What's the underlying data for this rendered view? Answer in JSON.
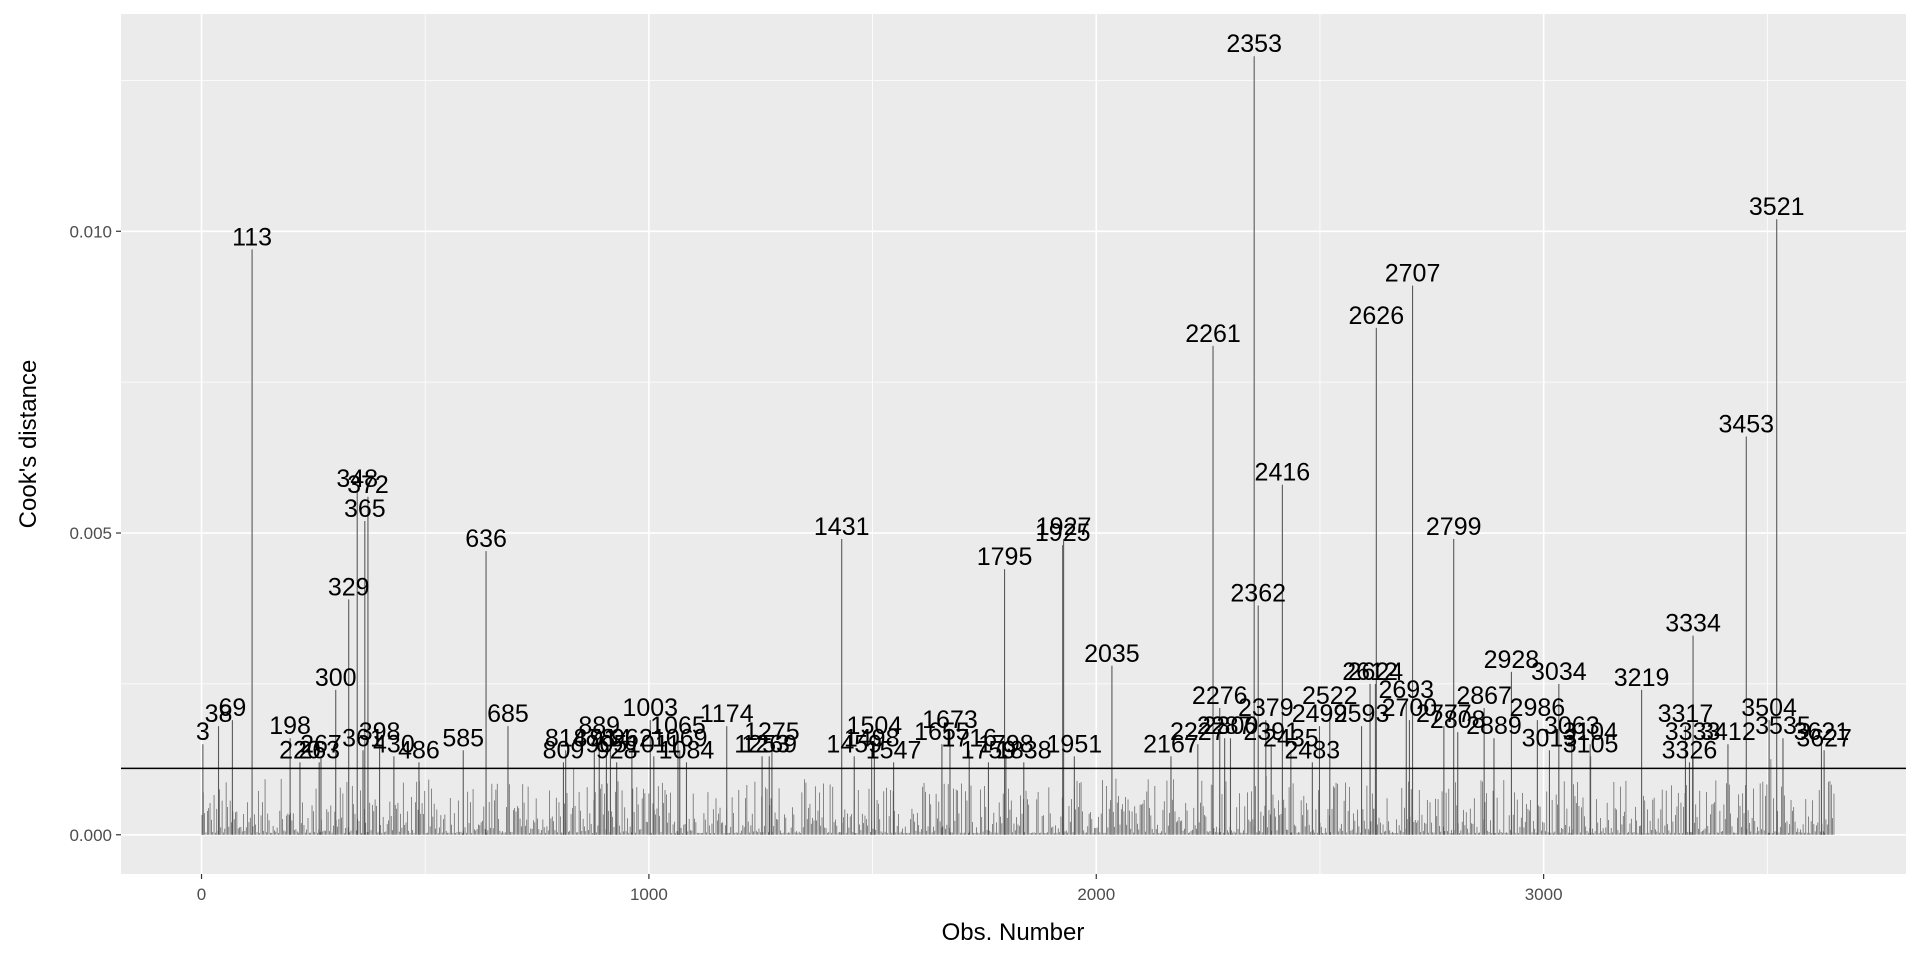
{
  "chart_data": {
    "type": "bar",
    "xlabel": "Obs. Number",
    "ylabel": "Cook's distance",
    "xlim": [
      -180,
      3810
    ],
    "ylim": [
      -0.00065,
      0.0136
    ],
    "x_ticks": [
      0,
      1000,
      2000,
      3000
    ],
    "y_ticks": [
      0.0,
      0.005,
      0.01
    ],
    "x_tick_labels": [
      "0",
      "1000",
      "2000",
      "3000"
    ],
    "y_tick_labels": [
      "0.000",
      "0.005",
      "0.010"
    ],
    "threshold": 0.0011,
    "n_obs": 3650,
    "grid": true,
    "colors": {
      "panel": "#ebebeb",
      "grid": "#ffffff",
      "bar": "#595959",
      "hline": "#000000"
    },
    "labeled_points": [
      {
        "x": 3,
        "y": 0.0015,
        "label": "3"
      },
      {
        "x": 38,
        "y": 0.0018,
        "label": "38"
      },
      {
        "x": 69,
        "y": 0.0019,
        "label": "69"
      },
      {
        "x": 113,
        "y": 0.0097,
        "label": "113"
      },
      {
        "x": 198,
        "y": 0.0016,
        "label": "198"
      },
      {
        "x": 220,
        "y": 0.0012,
        "label": "220"
      },
      {
        "x": 263,
        "y": 0.0012,
        "label": "263"
      },
      {
        "x": 267,
        "y": 0.0013,
        "label": "267"
      },
      {
        "x": 300,
        "y": 0.0024,
        "label": "300"
      },
      {
        "x": 329,
        "y": 0.0039,
        "label": "329"
      },
      {
        "x": 348,
        "y": 0.0057,
        "label": "348"
      },
      {
        "x": 361,
        "y": 0.0014,
        "label": "361"
      },
      {
        "x": 365,
        "y": 0.0052,
        "label": "365"
      },
      {
        "x": 372,
        "y": 0.0056,
        "label": "372"
      },
      {
        "x": 398,
        "y": 0.0015,
        "label": "398"
      },
      {
        "x": 430,
        "y": 0.0013,
        "label": "430"
      },
      {
        "x": 486,
        "y": 0.0012,
        "label": "486"
      },
      {
        "x": 585,
        "y": 0.0014,
        "label": "585"
      },
      {
        "x": 636,
        "y": 0.0047,
        "label": "636"
      },
      {
        "x": 685,
        "y": 0.0018,
        "label": "685"
      },
      {
        "x": 809,
        "y": 0.0012,
        "label": "809"
      },
      {
        "x": 814,
        "y": 0.0014,
        "label": "814"
      },
      {
        "x": 878,
        "y": 0.0014,
        "label": "878"
      },
      {
        "x": 889,
        "y": 0.0016,
        "label": "889"
      },
      {
        "x": 905,
        "y": 0.0013,
        "label": "905"
      },
      {
        "x": 914,
        "y": 0.0014,
        "label": "914"
      },
      {
        "x": 928,
        "y": 0.0012,
        "label": "928"
      },
      {
        "x": 962,
        "y": 0.0014,
        "label": "962"
      },
      {
        "x": 1003,
        "y": 0.0019,
        "label": "1003"
      },
      {
        "x": 1011,
        "y": 0.0013,
        "label": "1011"
      },
      {
        "x": 1065,
        "y": 0.0016,
        "label": "1065"
      },
      {
        "x": 1069,
        "y": 0.0014,
        "label": "1069"
      },
      {
        "x": 1084,
        "y": 0.0012,
        "label": "1084"
      },
      {
        "x": 1174,
        "y": 0.0018,
        "label": "1174"
      },
      {
        "x": 1253,
        "y": 0.0013,
        "label": "1253"
      },
      {
        "x": 1269,
        "y": 0.0013,
        "label": "1269"
      },
      {
        "x": 1275,
        "y": 0.0015,
        "label": "1275"
      },
      {
        "x": 1431,
        "y": 0.0049,
        "label": "1431"
      },
      {
        "x": 1459,
        "y": 0.0013,
        "label": "1459"
      },
      {
        "x": 1498,
        "y": 0.0014,
        "label": "1498"
      },
      {
        "x": 1504,
        "y": 0.0016,
        "label": "1504"
      },
      {
        "x": 1547,
        "y": 0.0012,
        "label": "1547"
      },
      {
        "x": 1655,
        "y": 0.0015,
        "label": "1655"
      },
      {
        "x": 1673,
        "y": 0.0017,
        "label": "1673"
      },
      {
        "x": 1716,
        "y": 0.0014,
        "label": "1716"
      },
      {
        "x": 1759,
        "y": 0.0012,
        "label": "1759"
      },
      {
        "x": 1795,
        "y": 0.0044,
        "label": "1795"
      },
      {
        "x": 1798,
        "y": 0.0013,
        "label": "1798"
      },
      {
        "x": 1838,
        "y": 0.0012,
        "label": "1838"
      },
      {
        "x": 1925,
        "y": 0.0048,
        "label": "1925"
      },
      {
        "x": 1927,
        "y": 0.0049,
        "label": "1927"
      },
      {
        "x": 1951,
        "y": 0.0013,
        "label": "1951"
      },
      {
        "x": 2035,
        "y": 0.0028,
        "label": "2035"
      },
      {
        "x": 2167,
        "y": 0.0013,
        "label": "2167"
      },
      {
        "x": 2227,
        "y": 0.0015,
        "label": "2227"
      },
      {
        "x": 2261,
        "y": 0.0081,
        "label": "2261"
      },
      {
        "x": 2276,
        "y": 0.0021,
        "label": "2276"
      },
      {
        "x": 2287,
        "y": 0.0016,
        "label": "2287"
      },
      {
        "x": 2300,
        "y": 0.0016,
        "label": "2300"
      },
      {
        "x": 2353,
        "y": 0.0129,
        "label": "2353"
      },
      {
        "x": 2362,
        "y": 0.0038,
        "label": "2362"
      },
      {
        "x": 2379,
        "y": 0.0019,
        "label": "2379"
      },
      {
        "x": 2391,
        "y": 0.0015,
        "label": "2391"
      },
      {
        "x": 2416,
        "y": 0.0058,
        "label": "2416"
      },
      {
        "x": 2435,
        "y": 0.0014,
        "label": "2435"
      },
      {
        "x": 2483,
        "y": 0.0012,
        "label": "2483"
      },
      {
        "x": 2499,
        "y": 0.0018,
        "label": "2499"
      },
      {
        "x": 2522,
        "y": 0.0021,
        "label": "2522"
      },
      {
        "x": 2593,
        "y": 0.0018,
        "label": "2593"
      },
      {
        "x": 2612,
        "y": 0.0025,
        "label": "2612"
      },
      {
        "x": 2624,
        "y": 0.0025,
        "label": "2624"
      },
      {
        "x": 2626,
        "y": 0.0084,
        "label": "2626"
      },
      {
        "x": 2693,
        "y": 0.0022,
        "label": "2693"
      },
      {
        "x": 2700,
        "y": 0.0019,
        "label": "2700"
      },
      {
        "x": 2707,
        "y": 0.0091,
        "label": "2707"
      },
      {
        "x": 2777,
        "y": 0.0018,
        "label": "2777"
      },
      {
        "x": 2799,
        "y": 0.0049,
        "label": "2799"
      },
      {
        "x": 2808,
        "y": 0.0017,
        "label": "2808"
      },
      {
        "x": 2867,
        "y": 0.0021,
        "label": "2867"
      },
      {
        "x": 2889,
        "y": 0.0016,
        "label": "2889"
      },
      {
        "x": 2928,
        "y": 0.0027,
        "label": "2928"
      },
      {
        "x": 2986,
        "y": 0.0019,
        "label": "2986"
      },
      {
        "x": 3013,
        "y": 0.0014,
        "label": "3013"
      },
      {
        "x": 3034,
        "y": 0.0025,
        "label": "3034"
      },
      {
        "x": 3063,
        "y": 0.0016,
        "label": "3063"
      },
      {
        "x": 3104,
        "y": 0.0015,
        "label": "3104"
      },
      {
        "x": 3105,
        "y": 0.0013,
        "label": "3105"
      },
      {
        "x": 3219,
        "y": 0.0024,
        "label": "3219"
      },
      {
        "x": 3317,
        "y": 0.0018,
        "label": "3317"
      },
      {
        "x": 3326,
        "y": 0.0012,
        "label": "3326"
      },
      {
        "x": 3333,
        "y": 0.0015,
        "label": "3333"
      },
      {
        "x": 3334,
        "y": 0.0033,
        "label": "3334"
      },
      {
        "x": 3412,
        "y": 0.0015,
        "label": "3412"
      },
      {
        "x": 3453,
        "y": 0.0066,
        "label": "3453"
      },
      {
        "x": 3504,
        "y": 0.0019,
        "label": "3504"
      },
      {
        "x": 3521,
        "y": 0.0102,
        "label": "3521"
      },
      {
        "x": 3535,
        "y": 0.0016,
        "label": "3535"
      },
      {
        "x": 3621,
        "y": 0.0015,
        "label": "3621"
      },
      {
        "x": 3627,
        "y": 0.0014,
        "label": "3627"
      }
    ]
  }
}
